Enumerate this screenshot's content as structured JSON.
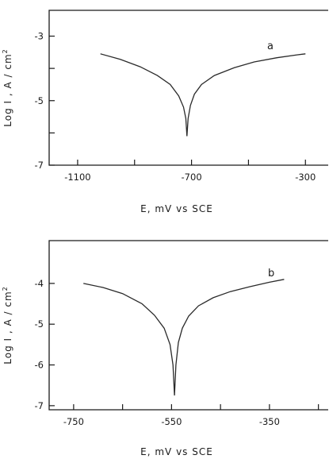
{
  "chart_data": [
    {
      "type": "line",
      "panel_label": "a",
      "xlabel": "E, mV vs SCE",
      "ylabel": "Log I , A / cm",
      "ylabel_sup": "2",
      "xlim": [
        -1200,
        -220
      ],
      "ylim": [
        -7,
        -2.2
      ],
      "x_ticks": [
        -1100,
        -900,
        -700,
        -500,
        -300
      ],
      "x_tick_labels": [
        "-1100",
        "",
        "-700",
        "",
        "-300"
      ],
      "y_ticks": [
        -3,
        -4,
        -5,
        -6,
        -7
      ],
      "y_tick_labels": [
        "-3",
        "",
        "-5",
        "",
        "-7"
      ],
      "grid": false,
      "series": [
        {
          "x": [
            -1020,
            -950,
            -880,
            -820,
            -775,
            -745,
            -728,
            -720,
            -716,
            -712,
            -704,
            -690,
            -665,
            -620,
            -550,
            -480,
            -400,
            -330,
            -300
          ],
          "y": [
            -3.55,
            -3.72,
            -3.95,
            -4.22,
            -4.5,
            -4.85,
            -5.2,
            -5.55,
            -6.1,
            -5.55,
            -5.15,
            -4.8,
            -4.5,
            -4.22,
            -3.98,
            -3.8,
            -3.67,
            -3.58,
            -3.55
          ]
        }
      ]
    },
    {
      "type": "line",
      "panel_label": "b",
      "xlabel": "E, mV vs SCE",
      "ylabel": "Log I , A / cm",
      "ylabel_sup": "2",
      "xlim": [
        -800,
        -230
      ],
      "ylim": [
        -7.1,
        -2.95
      ],
      "x_ticks": [
        -750,
        -650,
        -550,
        -450,
        -350,
        -250
      ],
      "x_tick_labels": [
        "-750",
        "",
        "-550",
        "",
        "-350",
        ""
      ],
      "y_ticks": [
        -4,
        -5,
        -6,
        -7
      ],
      "y_tick_labels": [
        "-4",
        "-5",
        "-6",
        "-7"
      ],
      "grid": false,
      "series": [
        {
          "x": [
            -730,
            -690,
            -650,
            -610,
            -585,
            -565,
            -553,
            -547,
            -544,
            -541,
            -536,
            -528,
            -515,
            -495,
            -465,
            -430,
            -390,
            -350,
            -320
          ],
          "y": [
            -4.0,
            -4.1,
            -4.25,
            -4.5,
            -4.78,
            -5.1,
            -5.5,
            -6.0,
            -6.75,
            -6.0,
            -5.45,
            -5.1,
            -4.8,
            -4.55,
            -4.35,
            -4.2,
            -4.08,
            -3.97,
            -3.9
          ]
        }
      ]
    }
  ]
}
